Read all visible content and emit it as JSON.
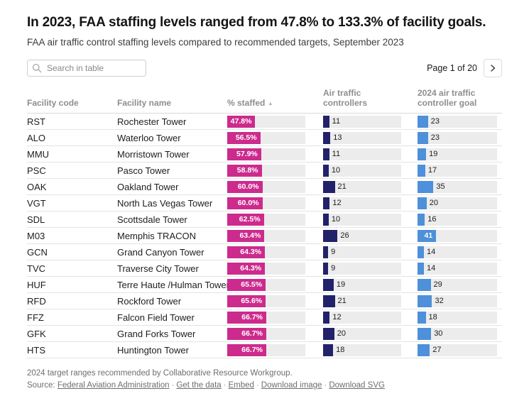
{
  "header": {
    "title": "In 2023, FAA staffing levels ranged from 47.8% to 133.3% of facility goals.",
    "subtitle": "FAA air traffic control staffing levels compared to recommended targets, September 2023"
  },
  "controls": {
    "search_placeholder": "Search in table",
    "page_indicator": "Page 1 of 20",
    "next_button_icon": "chevron-right-icon"
  },
  "chart_data": {
    "type": "table",
    "columns": [
      "Facility code",
      "Facility name",
      "% staffed",
      "Air traffic controllers",
      "2024 air traffic controller goal"
    ],
    "sort": {
      "column": "% staffed",
      "direction": "ascending",
      "icon": "sort-ascending-icon"
    },
    "bar_scales": {
      "pct_max": 133.3,
      "controllers_max": 140,
      "goal_max": 175
    },
    "colors": {
      "pct_bar": "#cc2b8d",
      "controllers_bar": "#22226a",
      "goal_bar": "#4e90d9",
      "track": "#ececec"
    },
    "rows": [
      {
        "code": "RST",
        "name": "Rochester Tower",
        "pct": 47.8,
        "pct_label": "47.8%",
        "controllers": 11,
        "goal": 23
      },
      {
        "code": "ALO",
        "name": "Waterloo Tower",
        "pct": 56.5,
        "pct_label": "56.5%",
        "controllers": 13,
        "goal": 23
      },
      {
        "code": "MMU",
        "name": "Morristown Tower",
        "pct": 57.9,
        "pct_label": "57.9%",
        "controllers": 11,
        "goal": 19
      },
      {
        "code": "PSC",
        "name": "Pasco Tower",
        "pct": 58.8,
        "pct_label": "58.8%",
        "controllers": 10,
        "goal": 17
      },
      {
        "code": "OAK",
        "name": "Oakland Tower",
        "pct": 60.0,
        "pct_label": "60.0%",
        "controllers": 21,
        "goal": 35
      },
      {
        "code": "VGT",
        "name": "North Las Vegas Tower",
        "pct": 60.0,
        "pct_label": "60.0%",
        "controllers": 12,
        "goal": 20
      },
      {
        "code": "SDL",
        "name": "Scottsdale Tower",
        "pct": 62.5,
        "pct_label": "62.5%",
        "controllers": 10,
        "goal": 16
      },
      {
        "code": "M03",
        "name": "Memphis TRACON",
        "pct": 63.4,
        "pct_label": "63.4%",
        "controllers": 26,
        "goal": 41
      },
      {
        "code": "GCN",
        "name": "Grand Canyon Tower",
        "pct": 64.3,
        "pct_label": "64.3%",
        "controllers": 9,
        "goal": 14
      },
      {
        "code": "TVC",
        "name": "Traverse City Tower",
        "pct": 64.3,
        "pct_label": "64.3%",
        "controllers": 9,
        "goal": 14
      },
      {
        "code": "HUF",
        "name": "Terre Haute /Hulman Tower",
        "pct": 65.5,
        "pct_label": "65.5%",
        "controllers": 19,
        "goal": 29
      },
      {
        "code": "RFD",
        "name": "Rockford Tower",
        "pct": 65.6,
        "pct_label": "65.6%",
        "controllers": 21,
        "goal": 32
      },
      {
        "code": "FFZ",
        "name": "Falcon Field Tower",
        "pct": 66.7,
        "pct_label": "66.7%",
        "controllers": 12,
        "goal": 18
      },
      {
        "code": "GFK",
        "name": "Grand Forks Tower",
        "pct": 66.7,
        "pct_label": "66.7%",
        "controllers": 20,
        "goal": 30
      },
      {
        "code": "HTS",
        "name": "Huntington Tower",
        "pct": 66.7,
        "pct_label": "66.7%",
        "controllers": 18,
        "goal": 27
      }
    ]
  },
  "footer": {
    "note": "2024 target ranges recommended by Collaborative Resource Workgroup.",
    "source_label": "Source:",
    "links": [
      "Federal Aviation Administration",
      "Get the data",
      "Embed",
      "Download image",
      "Download SVG"
    ]
  }
}
